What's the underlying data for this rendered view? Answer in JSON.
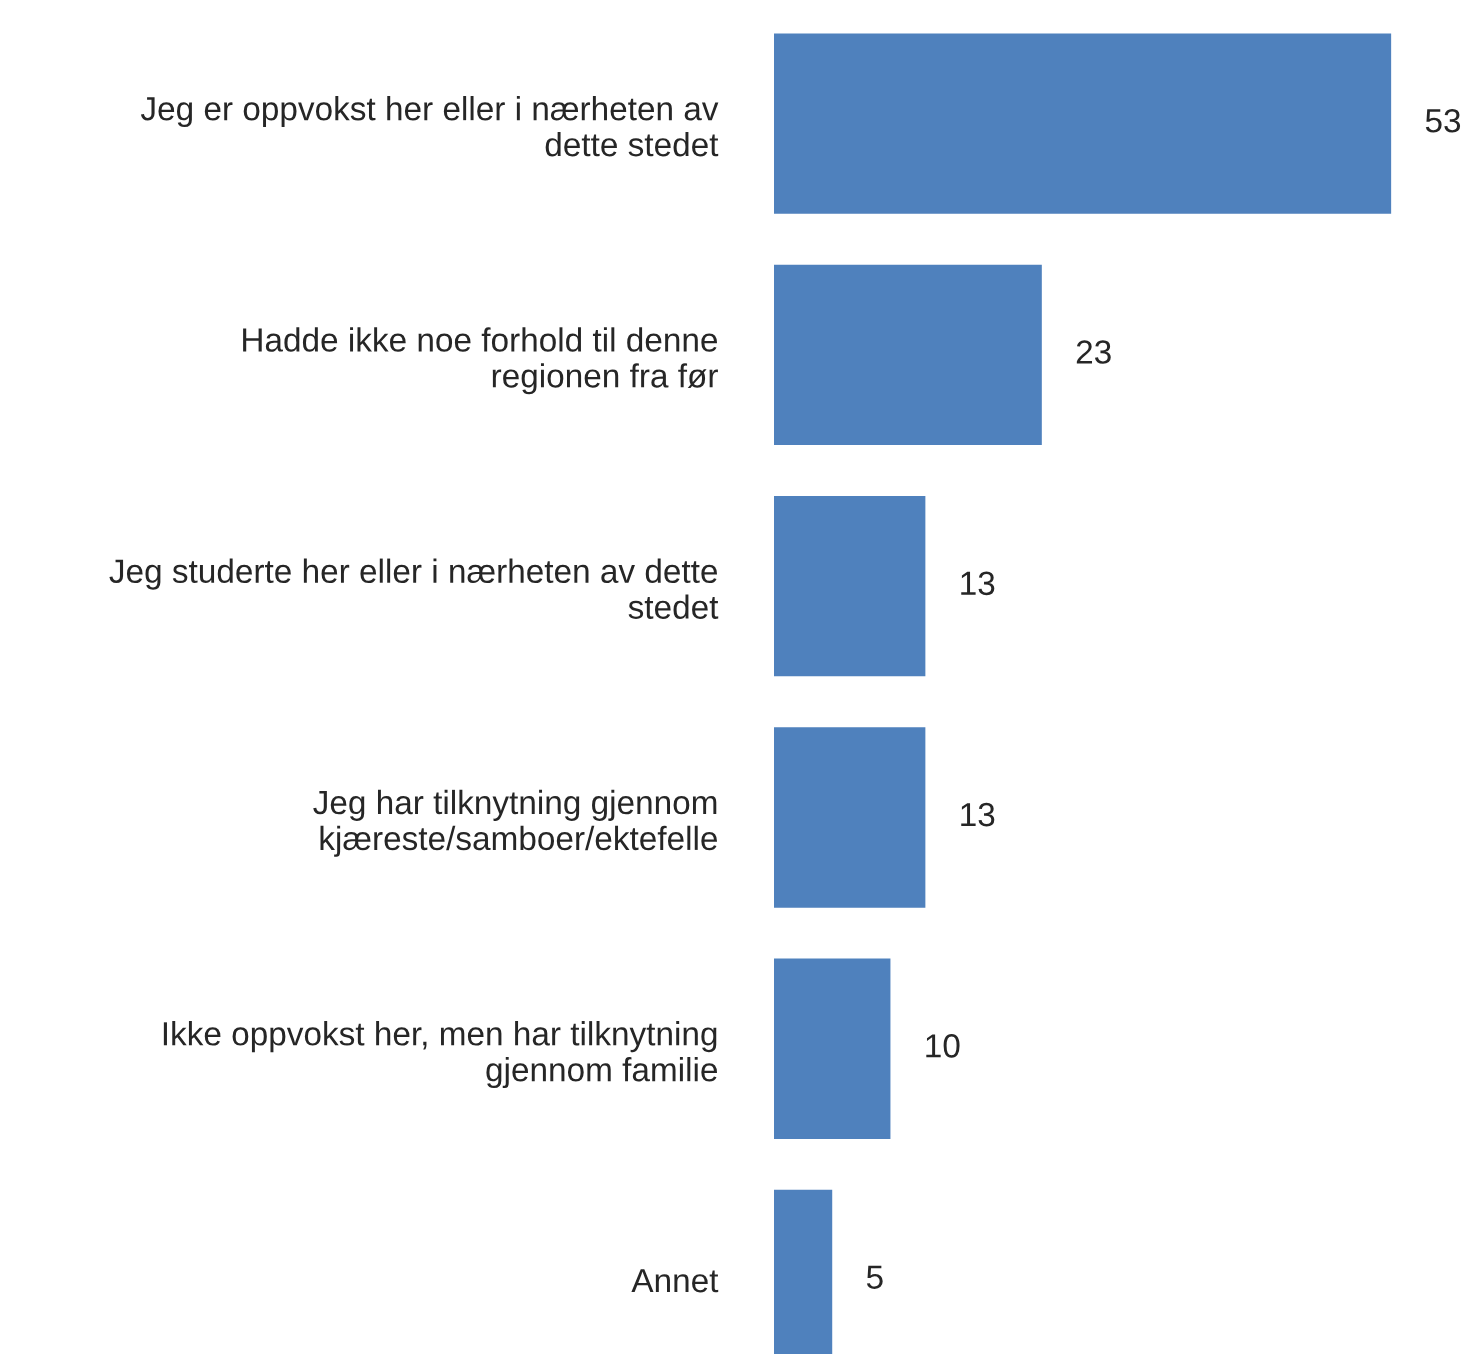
{
  "chart_data": {
    "type": "bar",
    "orientation": "horizontal",
    "categories": [
      "Jeg er oppvokst her eller i nærheten av\ndette stedet",
      "Hadde ikke noe forhold til denne\nregionen fra før",
      "Jeg studerte her eller i nærheten av dette\nstedet",
      "Jeg har tilknytning gjennom\nkjæreste/samboer/ektefelle",
      "Ikke oppvokst her, men har tilknytning\ngjennom familie",
      "Annet"
    ],
    "values": [
      53,
      23,
      13,
      13,
      10,
      5
    ],
    "color": "#4f81bd",
    "data_labels": true,
    "tick_labels": "y",
    "grid": false,
    "legend": false
  }
}
